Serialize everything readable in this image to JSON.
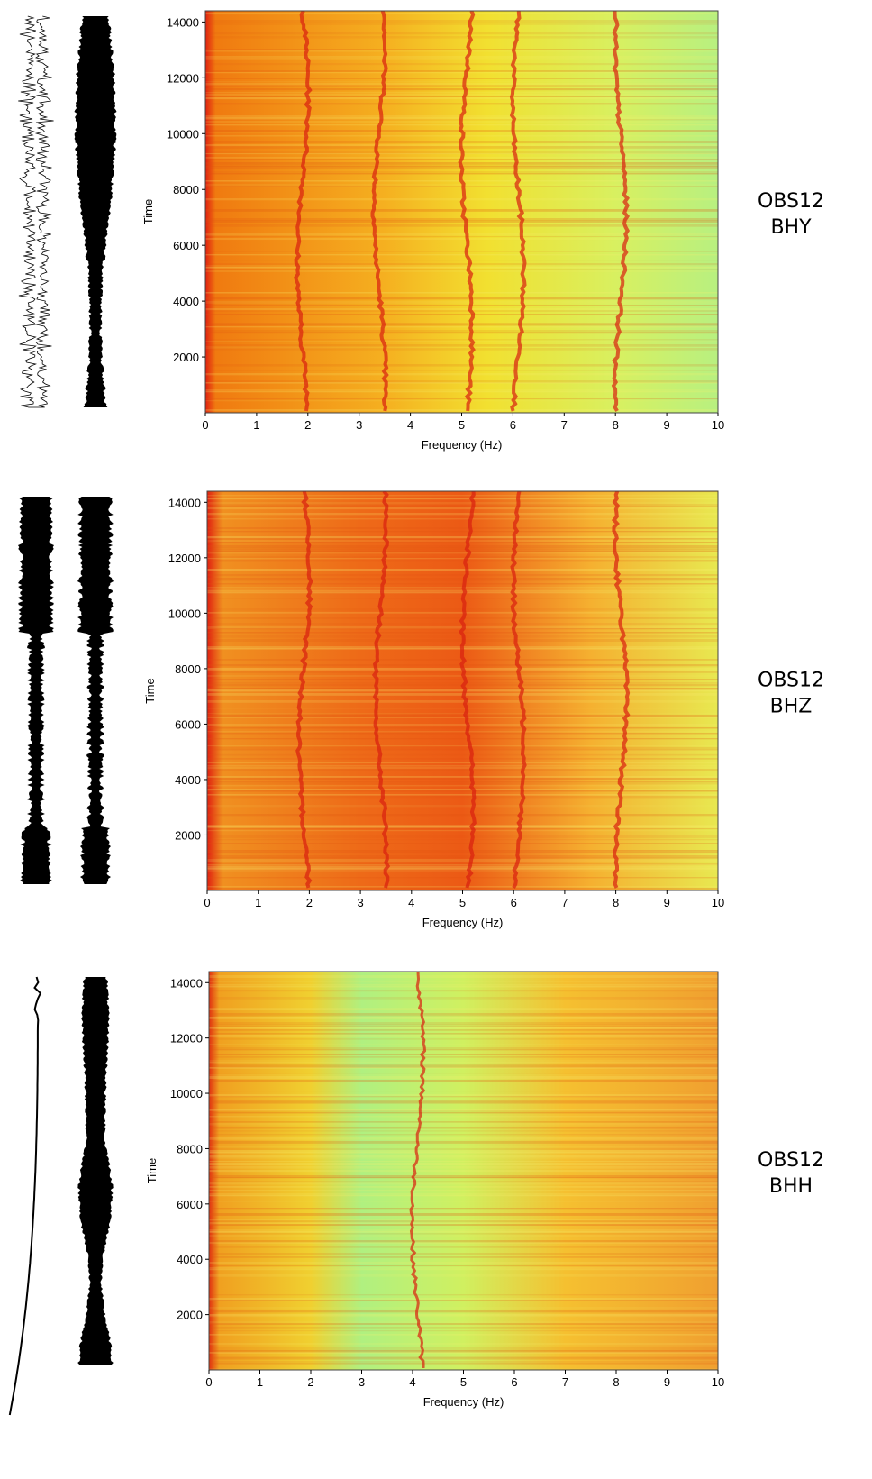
{
  "chart_data": [
    {
      "type": "spectrogram",
      "xlabel": "Frequency (Hz)",
      "ylabel": "Time",
      "station": "OBS12",
      "channel": "BHY",
      "xlim": [
        0,
        10
      ],
      "xticks": [
        0,
        1,
        2,
        3,
        4,
        5,
        6,
        7,
        8,
        9,
        10
      ],
      "ylim": [
        0,
        14400
      ],
      "yticks": [
        2000,
        4000,
        6000,
        8000,
        10000,
        12000,
        14000
      ]
    },
    {
      "type": "spectrogram",
      "xlabel": "Frequency (Hz)",
      "ylabel": "Time",
      "station": "OBS12",
      "channel": "BHZ",
      "xlim": [
        0,
        10
      ],
      "xticks": [
        0,
        1,
        2,
        3,
        4,
        5,
        6,
        7,
        8,
        9,
        10
      ],
      "ylim": [
        0,
        14400
      ],
      "yticks": [
        2000,
        4000,
        6000,
        8000,
        10000,
        12000,
        14000
      ]
    },
    {
      "type": "spectrogram",
      "xlabel": "Frequency (Hz)",
      "ylabel": "Time",
      "station": "OBS12",
      "channel": "BHH",
      "xlim": [
        0,
        10
      ],
      "xticks": [
        0,
        1,
        2,
        3,
        4,
        5,
        6,
        7,
        8,
        9,
        10
      ],
      "ylim": [
        0,
        14400
      ],
      "yticks": [
        2000,
        4000,
        6000,
        8000,
        10000,
        12000,
        14000
      ]
    }
  ]
}
